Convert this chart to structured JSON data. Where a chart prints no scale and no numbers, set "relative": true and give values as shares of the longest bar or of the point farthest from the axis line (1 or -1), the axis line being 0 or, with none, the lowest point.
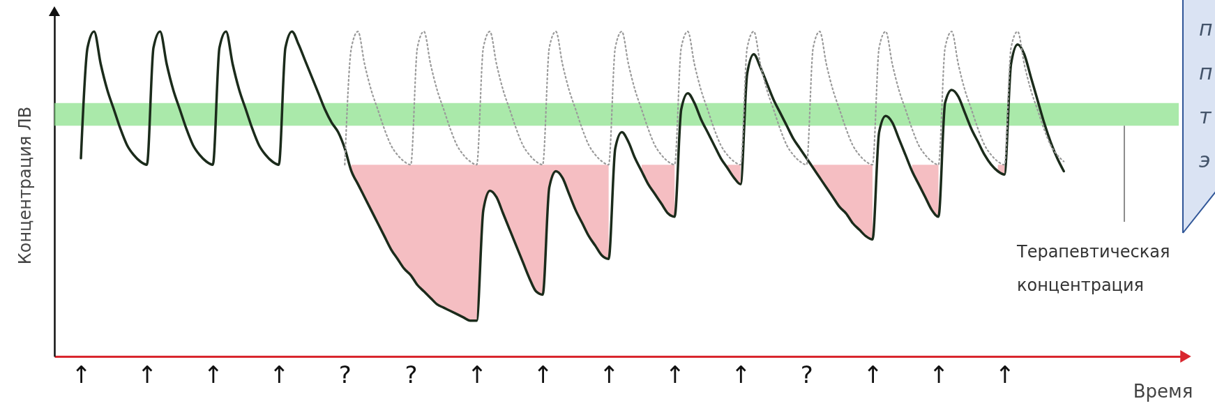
{
  "chart_data": {
    "type": "line",
    "relative": true,
    "xlabel": "Время",
    "ylabel": "Концентрация ЛВ",
    "categories": [
      "↑",
      null,
      null,
      null,
      null,
      null,
      null,
      null,
      null,
      null,
      "↑",
      null,
      null,
      null,
      null,
      null,
      null,
      null,
      null,
      null,
      "↑",
      null,
      null,
      null,
      null,
      null,
      null,
      null,
      null,
      null,
      "↑",
      null,
      null,
      null,
      null,
      null,
      null,
      null,
      null,
      null,
      "?",
      null,
      null,
      null,
      null,
      null,
      null,
      null,
      null,
      null,
      "?",
      null,
      null,
      null,
      null,
      null,
      null,
      null,
      null,
      null,
      "↑",
      null,
      null,
      null,
      null,
      null,
      null,
      null,
      null,
      null,
      "↑",
      null,
      null,
      null,
      null,
      null,
      null,
      null,
      null,
      null,
      "↑",
      null,
      null,
      null,
      null,
      null,
      null,
      null,
      null,
      null,
      "↑",
      null,
      null,
      null,
      null,
      null,
      null,
      null,
      null,
      null,
      "↑",
      null,
      null,
      null,
      null,
      null,
      null,
      null,
      null,
      null,
      "?",
      null,
      null,
      null,
      null,
      null,
      null,
      null,
      null,
      null,
      "↑",
      null,
      null,
      null,
      null,
      null,
      null,
      null,
      null,
      null,
      "↑",
      null,
      null,
      null,
      null,
      null,
      null,
      null,
      null,
      null,
      "↑",
      null,
      null,
      null,
      null,
      null,
      null,
      null,
      null,
      null
    ],
    "series": [
      {
        "color": "#1b2b1b",
        "line_style": "solid",
        "values": [
          0.61,
          0.95,
          1.0,
          0.9,
          0.82,
          0.76,
          0.7,
          0.65,
          0.62,
          0.6,
          0.59,
          0.95,
          1.0,
          0.9,
          0.82,
          0.76,
          0.7,
          0.65,
          0.62,
          0.6,
          0.59,
          0.95,
          1.0,
          0.9,
          0.82,
          0.76,
          0.7,
          0.65,
          0.62,
          0.6,
          0.59,
          0.95,
          1.0,
          0.96,
          0.91,
          0.86,
          0.81,
          0.76,
          0.72,
          0.69,
          0.64,
          0.57,
          0.53,
          0.49,
          0.45,
          0.41,
          0.37,
          0.33,
          0.3,
          0.27,
          0.25,
          0.22,
          0.2,
          0.18,
          0.16,
          0.15,
          0.14,
          0.13,
          0.12,
          0.11,
          0.11,
          0.45,
          0.51,
          0.49,
          0.44,
          0.39,
          0.34,
          0.29,
          0.24,
          0.2,
          0.19,
          0.52,
          0.57,
          0.55,
          0.5,
          0.45,
          0.41,
          0.37,
          0.34,
          0.31,
          0.3,
          0.64,
          0.69,
          0.66,
          0.61,
          0.57,
          0.53,
          0.5,
          0.47,
          0.44,
          0.43,
          0.76,
          0.81,
          0.78,
          0.73,
          0.69,
          0.65,
          0.61,
          0.58,
          0.55,
          0.53,
          0.87,
          0.93,
          0.89,
          0.84,
          0.79,
          0.75,
          0.71,
          0.67,
          0.64,
          0.61,
          0.58,
          0.55,
          0.52,
          0.49,
          0.46,
          0.44,
          0.41,
          0.39,
          0.37,
          0.36,
          0.69,
          0.74,
          0.72,
          0.67,
          0.62,
          0.57,
          0.53,
          0.49,
          0.45,
          0.43,
          0.78,
          0.82,
          0.8,
          0.75,
          0.7,
          0.66,
          0.62,
          0.59,
          0.57,
          0.56,
          0.9,
          0.96,
          0.93,
          0.86,
          0.79,
          0.72,
          0.66,
          0.61,
          0.57
        ],
        "lower": [
          null,
          null,
          null,
          null,
          null,
          null,
          null,
          null,
          null,
          null,
          null,
          null,
          null,
          null,
          null,
          null,
          null,
          null,
          null,
          null,
          null,
          null,
          null,
          null,
          null,
          null,
          null,
          null,
          null,
          null,
          null,
          null,
          null,
          null,
          null,
          null,
          null,
          null,
          null,
          null,
          null,
          0.57,
          0.53,
          0.49,
          0.45,
          0.41,
          0.37,
          0.33,
          0.3,
          0.27,
          0.25,
          0.22,
          0.2,
          0.18,
          0.16,
          0.15,
          0.14,
          0.13,
          0.12,
          0.11,
          0.11,
          0.45,
          0.51,
          0.49,
          0.44,
          0.39,
          0.34,
          0.29,
          0.24,
          0.2,
          0.19,
          0.52,
          0.57,
          0.55,
          0.5,
          0.45,
          0.41,
          0.37,
          0.34,
          0.31,
          0.3,
          null,
          null,
          null,
          null,
          0.57,
          0.53,
          0.5,
          0.47,
          0.44,
          0.43,
          null,
          null,
          null,
          null,
          null,
          null,
          null,
          0.58,
          0.55,
          0.53,
          null,
          null,
          null,
          null,
          null,
          null,
          null,
          null,
          null,
          null,
          0.58,
          0.55,
          0.52,
          0.49,
          0.46,
          0.44,
          0.41,
          0.39,
          0.37,
          0.36,
          null,
          null,
          null,
          null,
          null,
          0.57,
          0.53,
          0.49,
          0.45,
          0.43,
          null,
          null,
          null,
          null,
          null,
          null,
          null,
          null,
          0.57,
          0.56,
          null,
          null,
          null,
          null,
          null,
          null,
          null,
          null,
          null
        ],
        "upper": [
          null,
          null,
          null,
          null,
          null,
          null,
          null,
          null,
          null,
          null,
          null,
          null,
          null,
          null,
          null,
          null,
          null,
          null,
          null,
          null,
          null,
          null,
          null,
          null,
          null,
          null,
          null,
          null,
          null,
          null,
          null,
          null,
          null,
          null,
          null,
          null,
          null,
          null,
          null,
          null,
          null,
          0.59,
          0.59,
          0.59,
          0.59,
          0.59,
          0.59,
          0.59,
          0.59,
          0.59,
          0.59,
          0.59,
          0.59,
          0.59,
          0.59,
          0.59,
          0.59,
          0.59,
          0.59,
          0.59,
          0.59,
          0.59,
          0.59,
          0.59,
          0.59,
          0.59,
          0.59,
          0.59,
          0.59,
          0.59,
          0.59,
          0.59,
          0.59,
          0.59,
          0.59,
          0.59,
          0.59,
          0.59,
          0.59,
          0.59,
          0.59,
          null,
          null,
          null,
          null,
          0.59,
          0.59,
          0.59,
          0.59,
          0.59,
          0.59,
          null,
          null,
          null,
          null,
          null,
          null,
          null,
          0.59,
          0.59,
          0.59,
          null,
          null,
          null,
          null,
          null,
          null,
          null,
          null,
          null,
          null,
          0.59,
          0.59,
          0.59,
          0.59,
          0.59,
          0.59,
          0.59,
          0.59,
          0.59,
          0.59,
          null,
          null,
          null,
          null,
          null,
          0.59,
          0.59,
          0.59,
          0.59,
          0.59,
          null,
          null,
          null,
          null,
          null,
          null,
          null,
          null,
          0.59,
          0.59,
          null,
          null,
          null,
          null,
          null,
          null,
          null,
          null,
          null
        ]
      },
      {
        "color": "#9a9a9a",
        "line_style": "dotted",
        "values": [
          null,
          null,
          null,
          null,
          null,
          null,
          null,
          null,
          null,
          null,
          null,
          null,
          null,
          null,
          null,
          null,
          null,
          null,
          null,
          null,
          null,
          null,
          null,
          null,
          null,
          null,
          null,
          null,
          null,
          null,
          null,
          null,
          null,
          null,
          null,
          null,
          null,
          null,
          null,
          null,
          0.59,
          0.95,
          1.0,
          0.9,
          0.82,
          0.76,
          0.7,
          0.65,
          0.62,
          0.6,
          0.59,
          0.95,
          1.0,
          0.9,
          0.82,
          0.76,
          0.7,
          0.65,
          0.62,
          0.6,
          0.59,
          0.95,
          1.0,
          0.9,
          0.82,
          0.76,
          0.7,
          0.65,
          0.62,
          0.6,
          0.59,
          0.95,
          1.0,
          0.9,
          0.82,
          0.76,
          0.7,
          0.65,
          0.62,
          0.6,
          0.59,
          0.95,
          1.0,
          0.9,
          0.82,
          0.76,
          0.7,
          0.65,
          0.62,
          0.6,
          0.59,
          0.95,
          1.0,
          0.9,
          0.82,
          0.76,
          0.7,
          0.65,
          0.62,
          0.6,
          0.59,
          0.95,
          1.0,
          0.9,
          0.82,
          0.76,
          0.7,
          0.65,
          0.62,
          0.6,
          0.59,
          0.95,
          1.0,
          0.9,
          0.82,
          0.76,
          0.7,
          0.65,
          0.62,
          0.6,
          0.59,
          0.95,
          1.0,
          0.9,
          0.82,
          0.76,
          0.7,
          0.65,
          0.62,
          0.6,
          0.59,
          0.95,
          1.0,
          0.9,
          0.82,
          0.76,
          0.7,
          0.65,
          0.62,
          0.6,
          0.59,
          0.95,
          1.0,
          0.9,
          0.82,
          0.76,
          0.7,
          0.65,
          0.62,
          0.6
        ]
      }
    ],
    "bands": [
      {
        "axis": "y",
        "from": 0.71,
        "to": 0.78,
        "label": "Терапевтическая концентрация",
        "color": "#8ee28e"
      }
    ],
    "annotations": [
      "п",
      "п",
      "т",
      "э"
    ]
  }
}
